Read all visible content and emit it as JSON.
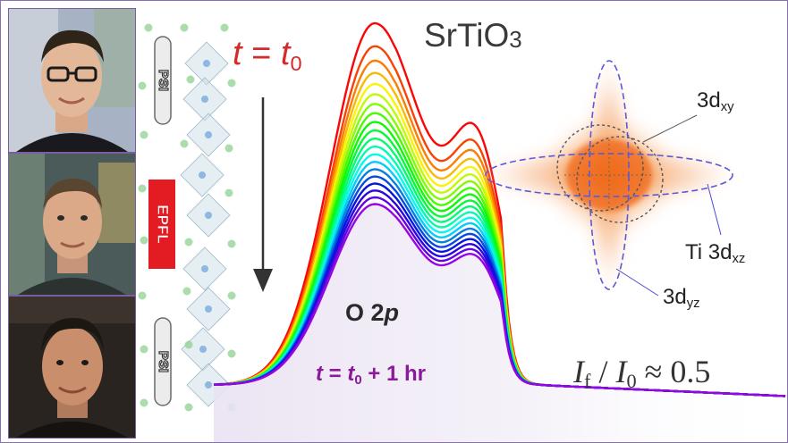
{
  "title": {
    "formula_base": "SrTiO",
    "formula_sub": "3"
  },
  "time_start": {
    "var": "t",
    "eq": " = ",
    "sub_var": "t",
    "sub_idx": "0"
  },
  "time_end": {
    "var": "t",
    "eq": " = ",
    "sub_var": "t",
    "sub_idx": "0",
    "rest": " + 1 hr"
  },
  "band_label": {
    "text": "O 2",
    "italic": "p"
  },
  "ratio": {
    "num": "I",
    "num_sub": "f",
    "slash": " / ",
    "den": "I",
    "den_sub": "0",
    "approx": " ≈ 0.5"
  },
  "orbitals": {
    "xy": {
      "base": "3d",
      "sub": "xy"
    },
    "xz": {
      "base": "Ti 3d",
      "sub": "xz"
    },
    "yz": {
      "base": "3d",
      "sub": "yz"
    }
  },
  "logos": {
    "psi_top": "PSI",
    "epfl": "EPFL",
    "psi_bottom": "PSI"
  },
  "colors": {
    "accent_red": "#d42a2a",
    "accent_purple": "#8a1a9a",
    "frame": "#8a6fb0"
  },
  "spectra": {
    "count": 20,
    "peak_start": 1.0,
    "peak_end": 0.5,
    "color_order": [
      "red",
      "orange",
      "yellow",
      "green",
      "cyan",
      "blue",
      "purple"
    ]
  }
}
